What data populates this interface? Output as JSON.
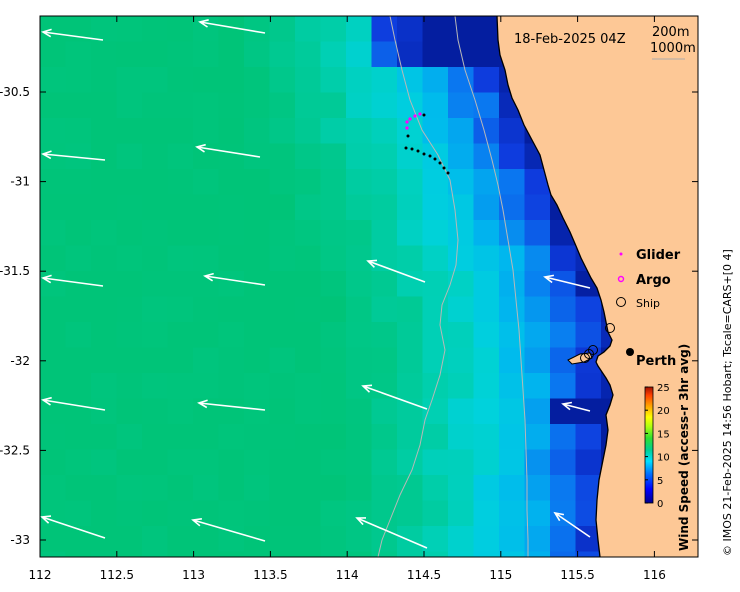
{
  "map": {
    "timestamp": "18-Feb-2025 04Z",
    "contours": [
      "200m",
      "1000m"
    ],
    "credit": "© IMOS 21-Feb-2025 14:56 Hobart; Tscale=CARS+[0 4]",
    "x_ticks": [
      "112",
      "112.5",
      "113",
      "113.5",
      "114",
      "114.5",
      "115",
      "115.5",
      "116"
    ],
    "y_ticks": [
      "-30.5",
      "-31",
      "-31.5",
      "-32",
      "-32.5",
      "-33"
    ],
    "legend": {
      "glider": "Glider",
      "argo": "Argo",
      "ship": "Ship"
    },
    "place": "Perth",
    "colorbar": {
      "label": "Wind Speed (access-r 3hr avg)",
      "ticks": [
        "0",
        "5",
        "10",
        "15",
        "20",
        "25"
      ],
      "range": [
        0,
        25
      ]
    },
    "colors": {
      "land": "#fdc896",
      "coast": "#000000",
      "arrow": "#ffffff",
      "glider": "#ff00ff"
    }
  }
}
